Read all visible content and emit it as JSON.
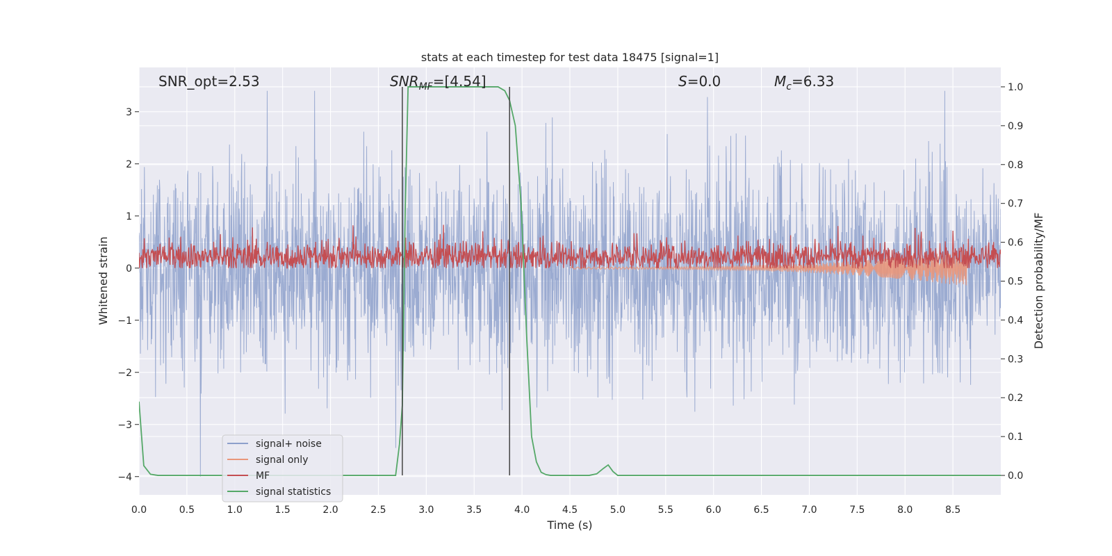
{
  "chart_data": {
    "type": "line",
    "title": "stats at each timestep for test data 18475 [signal=1]",
    "xlabel": "Time (s)",
    "ylabel_left": "Whitened strain",
    "ylabel_right": "Detection probability/MF",
    "xlim": [
      0.0,
      9.0
    ],
    "ylim_left": [
      -4.35,
      3.85
    ],
    "ylim_right": [
      -0.05,
      1.05
    ],
    "grid": true,
    "legend_position": "lower-left",
    "x_ticks": [
      "0.0",
      "0.5",
      "1.0",
      "1.5",
      "2.0",
      "2.5",
      "3.0",
      "3.5",
      "4.0",
      "4.5",
      "5.0",
      "5.5",
      "6.0",
      "6.5",
      "7.0",
      "7.5",
      "8.0",
      "8.5"
    ],
    "x_tick_values": [
      0.0,
      0.5,
      1.0,
      1.5,
      2.0,
      2.5,
      3.0,
      3.5,
      4.0,
      4.5,
      5.0,
      5.5,
      6.0,
      6.5,
      7.0,
      7.5,
      8.0,
      8.5
    ],
    "y_left_ticks": [
      "3",
      "2",
      "1",
      "0",
      "−1",
      "−2",
      "−3",
      "−4"
    ],
    "y_left_tick_values": [
      3,
      2,
      1,
      0,
      -1,
      -2,
      -3,
      -4
    ],
    "y_right_ticks": [
      "1.0",
      "0.9",
      "0.8",
      "0.7",
      "0.6",
      "0.5",
      "0.4",
      "0.3",
      "0.2",
      "0.1",
      "0.0"
    ],
    "y_right_tick_values": [
      1.0,
      0.9,
      0.8,
      0.7,
      0.6,
      0.5,
      0.4,
      0.3,
      0.2,
      0.1,
      0.0
    ],
    "annotations": {
      "snr_opt": "SNR_opt=2.53",
      "snr_mf_prefix": "SNR",
      "snr_mf_sub": "MF",
      "snr_mf_value": "=[4.54]",
      "s_label": "S",
      "s_value": "=0.0",
      "mc_label": "M",
      "mc_sub": "c",
      "mc_value": "=6.33"
    },
    "vertical_lines": [
      2.75,
      3.87
    ],
    "series": [
      {
        "name": "signal+ noise",
        "color": "#8da0cb",
        "axis": "left",
        "style": "noise",
        "center": 0.0,
        "std": 0.95,
        "x_range": [
          0.0,
          9.0
        ]
      },
      {
        "name": "signal only",
        "color": "#e9967a",
        "axis": "left",
        "style": "chirp",
        "x_range": [
          4.5,
          8.65
        ],
        "amp_start": 0.02,
        "amp_end": 0.35
      },
      {
        "name": "MF",
        "color": "#c44e52",
        "axis": "left",
        "style": "mf",
        "center": 0.22,
        "std": 0.15,
        "x_range": [
          0.0,
          9.0
        ]
      },
      {
        "name": "signal statistics",
        "color": "#55a868",
        "axis": "right",
        "style": "line",
        "x": [
          0.0,
          0.05,
          0.12,
          0.2,
          0.5,
          1.0,
          1.5,
          2.0,
          2.5,
          2.68,
          2.72,
          2.75,
          2.78,
          2.81,
          2.85,
          3.0,
          3.5,
          3.75,
          3.82,
          3.87,
          3.93,
          3.99,
          4.05,
          4.1,
          4.15,
          4.2,
          4.25,
          4.3,
          4.5,
          4.7,
          4.78,
          4.85,
          4.9,
          4.95,
          5.0,
          5.5,
          6.0,
          7.0,
          8.0,
          9.0
        ],
        "y": [
          0.19,
          0.025,
          0.003,
          0.0,
          0.0,
          0.0,
          0.0,
          0.0,
          0.0,
          0.0,
          0.08,
          0.18,
          0.68,
          1.0,
          1.0,
          1.0,
          1.0,
          1.0,
          0.99,
          0.965,
          0.9,
          0.7,
          0.35,
          0.1,
          0.035,
          0.008,
          0.002,
          0.0,
          0.0,
          0.0,
          0.004,
          0.018,
          0.027,
          0.01,
          0.0,
          0.0,
          0.0,
          0.0,
          0.0,
          0.0
        ]
      }
    ]
  }
}
